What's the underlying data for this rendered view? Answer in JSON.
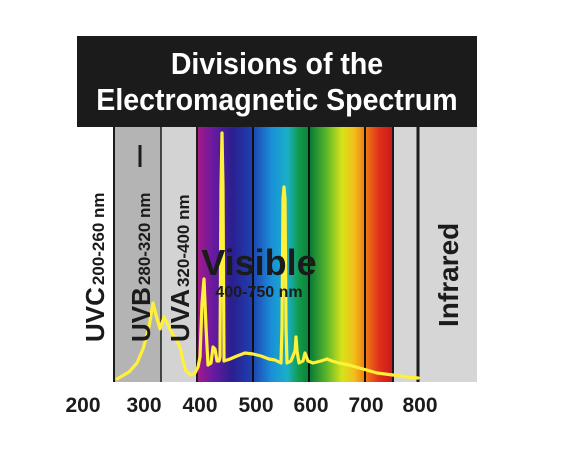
{
  "title": {
    "line1": "Divisions of the",
    "line2": "Electromagnetic Spectrum"
  },
  "regions": {
    "uvc": {
      "name": "UVC",
      "range": "200-260 nm"
    },
    "uvb": {
      "name": "UVB",
      "range": "280-320 nm"
    },
    "uva": {
      "name": "UVA",
      "range": "320-400 nm"
    },
    "visible": {
      "name": "Visible",
      "range": "400-750 nm"
    },
    "infrared": {
      "name": "Infrared"
    }
  },
  "axis": {
    "ticks": [
      "200",
      "300",
      "400",
      "500",
      "600",
      "700",
      "800"
    ]
  },
  "colors": {
    "frame": "#1b1b1b",
    "emission_line": "#fff03a",
    "uvc_band": "#ffffff",
    "uvb_band": "#b4b4b4",
    "uva_band": "#d3d3d3",
    "infrared_band": "#d6d6d6"
  }
}
